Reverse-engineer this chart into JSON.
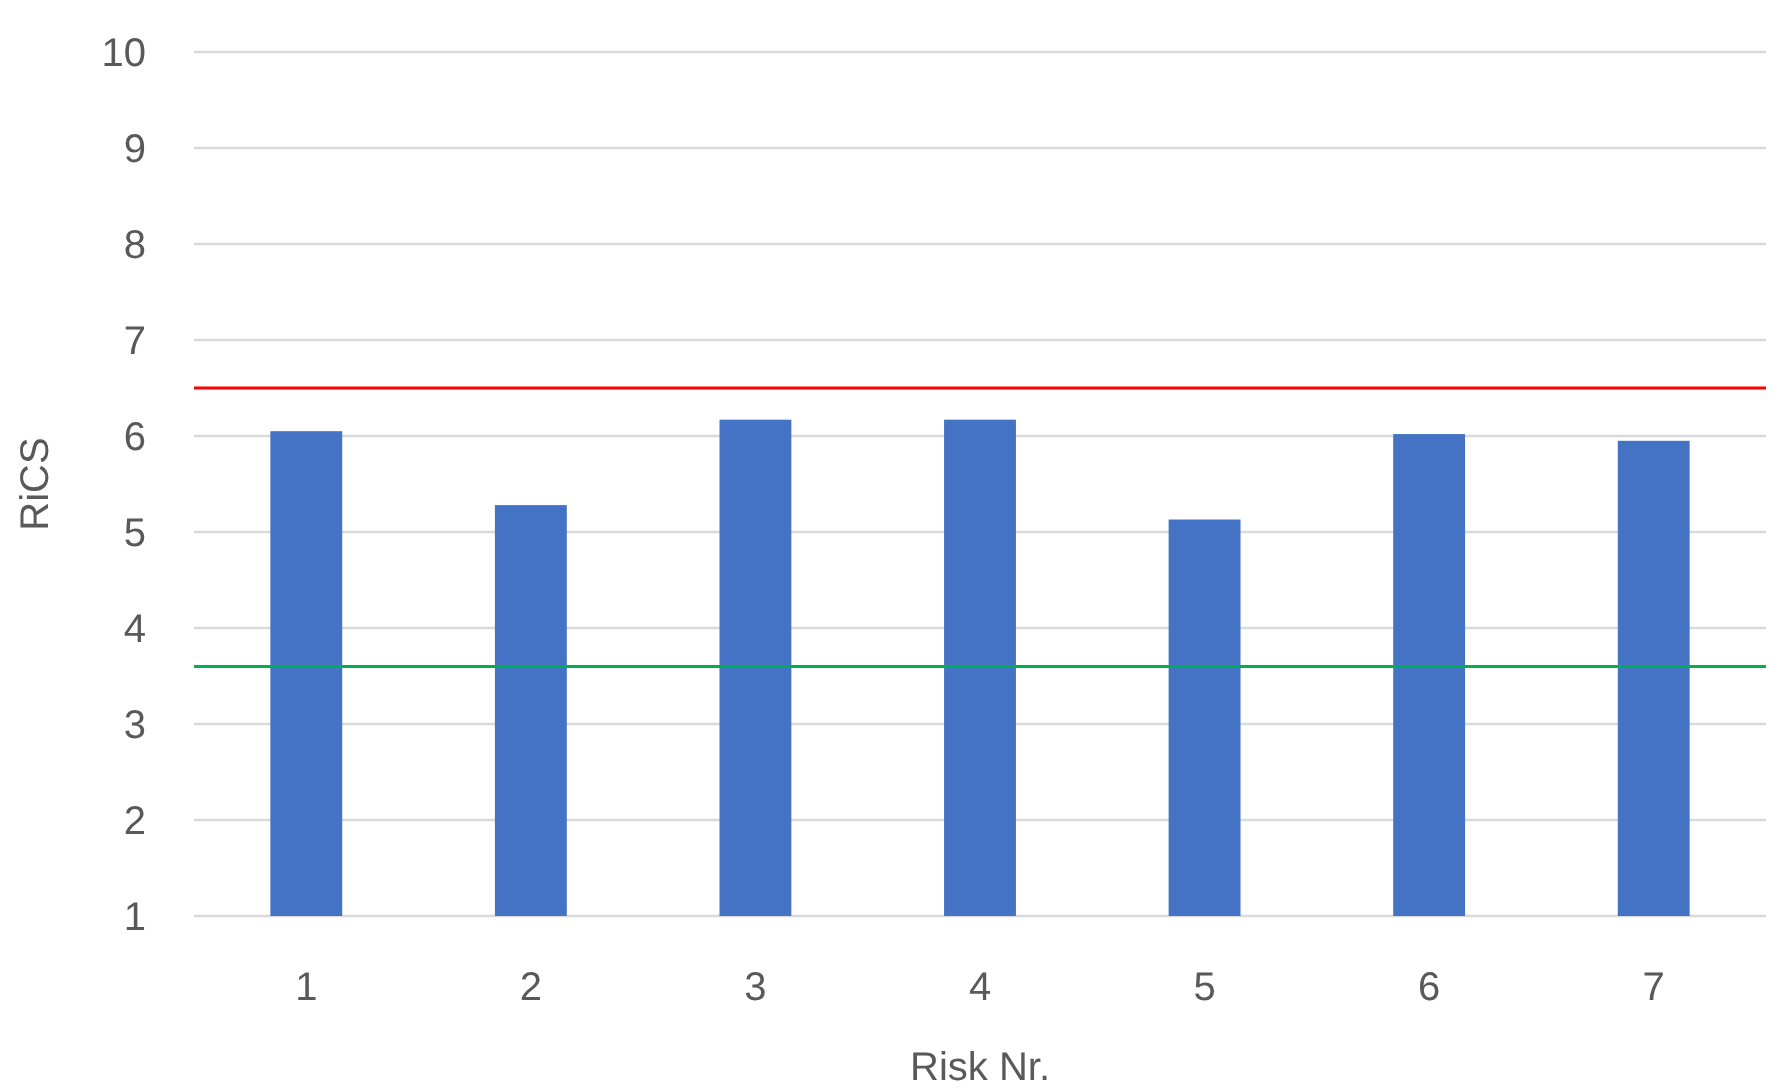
{
  "chart_data": {
    "type": "bar",
    "xlabel": "Risk Nr.",
    "ylabel": "RiCS",
    "categories": [
      "1",
      "2",
      "3",
      "4",
      "5",
      "6",
      "7"
    ],
    "values": [
      6.05,
      5.28,
      6.17,
      6.17,
      5.13,
      6.02,
      5.95
    ],
    "color": "#4472c4",
    "ylim": [
      1,
      10
    ],
    "yticks": [
      1,
      2,
      3,
      4,
      5,
      6,
      7,
      8,
      9,
      10
    ],
    "grid": "y",
    "ref_lines": [
      {
        "axis": "y",
        "value": 6.5,
        "color": "#ff0000"
      },
      {
        "axis": "y",
        "value": 3.6,
        "color": "#00b050"
      }
    ]
  }
}
